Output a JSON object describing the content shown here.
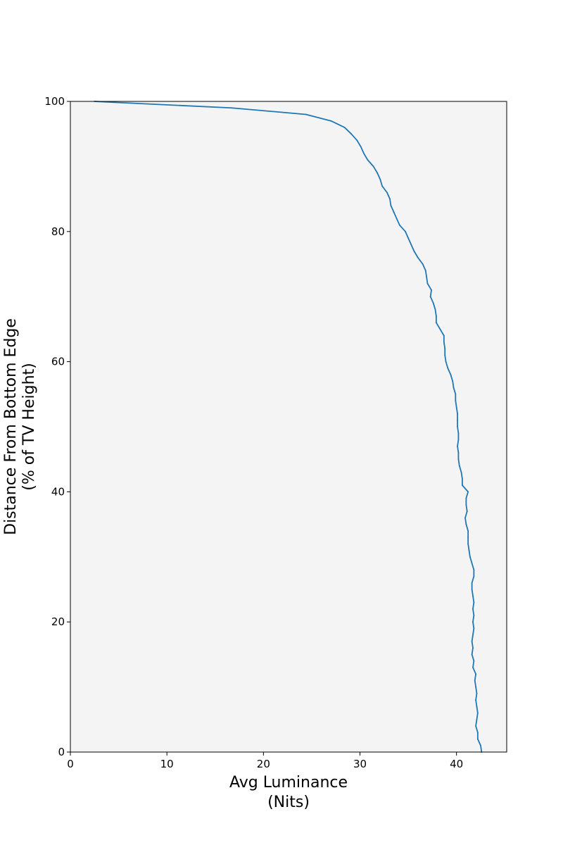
{
  "chart_data": {
    "type": "line",
    "xlabel": [
      "Avg Luminance",
      "(Nits)"
    ],
    "ylabel": [
      "Distance From Bottom Edge",
      "(% of TV Height)"
    ],
    "xlim": [
      0,
      45.2
    ],
    "ylim": [
      0,
      100
    ],
    "x_ticks": [
      "0",
      "10",
      "20",
      "30",
      "40"
    ],
    "y_ticks": [
      "0",
      "20",
      "40",
      "60",
      "80",
      "100"
    ],
    "grid": false,
    "colors": {
      "line": "#1f77b4",
      "plot_background": "#f4f4f4"
    },
    "series": [
      {
        "points": [
          [
            42.6,
            0
          ],
          [
            42.5,
            1
          ],
          [
            42.2,
            2
          ],
          [
            42.2,
            3
          ],
          [
            42.0,
            4
          ],
          [
            42.1,
            5
          ],
          [
            42.2,
            6
          ],
          [
            42.1,
            7
          ],
          [
            42.0,
            8
          ],
          [
            42.1,
            9
          ],
          [
            42.0,
            10
          ],
          [
            41.9,
            11
          ],
          [
            42.0,
            12
          ],
          [
            41.7,
            13
          ],
          [
            41.8,
            14
          ],
          [
            41.6,
            15
          ],
          [
            41.7,
            16
          ],
          [
            41.6,
            17
          ],
          [
            41.7,
            18
          ],
          [
            41.8,
            19
          ],
          [
            41.7,
            20
          ],
          [
            41.8,
            21
          ],
          [
            41.7,
            22
          ],
          [
            41.8,
            23
          ],
          [
            41.7,
            24
          ],
          [
            41.6,
            25
          ],
          [
            41.6,
            26
          ],
          [
            41.8,
            27
          ],
          [
            41.8,
            28
          ],
          [
            41.6,
            29
          ],
          [
            41.4,
            30
          ],
          [
            41.3,
            31
          ],
          [
            41.2,
            32
          ],
          [
            41.2,
            33
          ],
          [
            41.2,
            34
          ],
          [
            41.0,
            35
          ],
          [
            40.9,
            36
          ],
          [
            41.1,
            37
          ],
          [
            41.0,
            38
          ],
          [
            41.0,
            39
          ],
          [
            41.2,
            40
          ],
          [
            40.6,
            41
          ],
          [
            40.6,
            42
          ],
          [
            40.5,
            43
          ],
          [
            40.3,
            44
          ],
          [
            40.2,
            45
          ],
          [
            40.2,
            46
          ],
          [
            40.1,
            47
          ],
          [
            40.2,
            48
          ],
          [
            40.2,
            49
          ],
          [
            40.1,
            50
          ],
          [
            40.1,
            51
          ],
          [
            40.1,
            52
          ],
          [
            40.0,
            53
          ],
          [
            39.9,
            54
          ],
          [
            39.9,
            55
          ],
          [
            39.7,
            56
          ],
          [
            39.6,
            57
          ],
          [
            39.4,
            58
          ],
          [
            39.1,
            59
          ],
          [
            38.9,
            60
          ],
          [
            38.8,
            61
          ],
          [
            38.8,
            62
          ],
          [
            38.7,
            63
          ],
          [
            38.7,
            64
          ],
          [
            38.3,
            65
          ],
          [
            37.9,
            66
          ],
          [
            37.9,
            67
          ],
          [
            37.8,
            68
          ],
          [
            37.6,
            69
          ],
          [
            37.3,
            70
          ],
          [
            37.4,
            71
          ],
          [
            37.0,
            72
          ],
          [
            36.9,
            73
          ],
          [
            36.8,
            74
          ],
          [
            36.5,
            75
          ],
          [
            36.0,
            76
          ],
          [
            35.6,
            77
          ],
          [
            35.3,
            78
          ],
          [
            35.0,
            79
          ],
          [
            34.7,
            80
          ],
          [
            34.1,
            81
          ],
          [
            33.8,
            82
          ],
          [
            33.5,
            83
          ],
          [
            33.2,
            84
          ],
          [
            33.1,
            85
          ],
          [
            32.8,
            86
          ],
          [
            32.3,
            87
          ],
          [
            32.1,
            88
          ],
          [
            31.8,
            89
          ],
          [
            31.4,
            90
          ],
          [
            30.8,
            91
          ],
          [
            30.4,
            92
          ],
          [
            30.1,
            93
          ],
          [
            29.7,
            94
          ],
          [
            29.1,
            95
          ],
          [
            28.4,
            96
          ],
          [
            27.0,
            97
          ],
          [
            24.4,
            98
          ],
          [
            16.7,
            99
          ],
          [
            2.5,
            100
          ]
        ]
      }
    ]
  }
}
